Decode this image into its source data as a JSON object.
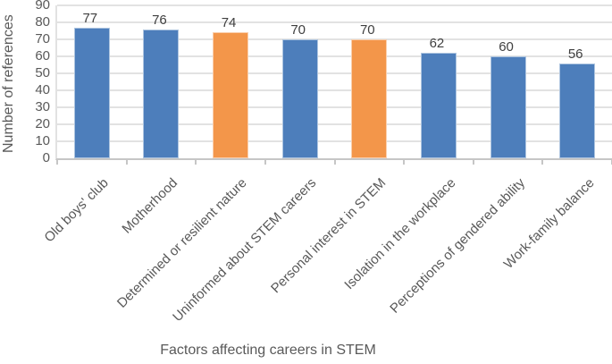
{
  "chart_data": {
    "type": "bar",
    "title": "",
    "xlabel": "Factors affecting careers in STEM",
    "ylabel": "Number of references",
    "categories": [
      "Old boys' club",
      "Motherhood",
      "Determined or resilient nature",
      "Uninformed about STEM careers",
      "Personal interest in STEM",
      "Isolation in the workplace",
      "Perceptions of gendered ability",
      "Work-family balance"
    ],
    "values": [
      77,
      76,
      74,
      70,
      70,
      62,
      60,
      56
    ],
    "bar_colors": [
      "#4D7EBB",
      "#4D7EBB",
      "#F3964A",
      "#4D7EBB",
      "#F3964A",
      "#4D7EBB",
      "#4D7EBB",
      "#4D7EBB"
    ],
    "ylim": [
      0,
      90
    ],
    "yticks": [
      0,
      10,
      20,
      30,
      40,
      50,
      60,
      70,
      80,
      90
    ],
    "grid": true,
    "legend": false,
    "data_labels_shown": true,
    "colors": {
      "bar_blue": "#4D7EBB",
      "bar_orange": "#F3964A",
      "gridline": "#E2E2E2",
      "axis_line": "#C6C6C6",
      "axis_text": "#595959",
      "data_label_text": "#3F3F3F",
      "background": "#FFFFFF"
    }
  }
}
